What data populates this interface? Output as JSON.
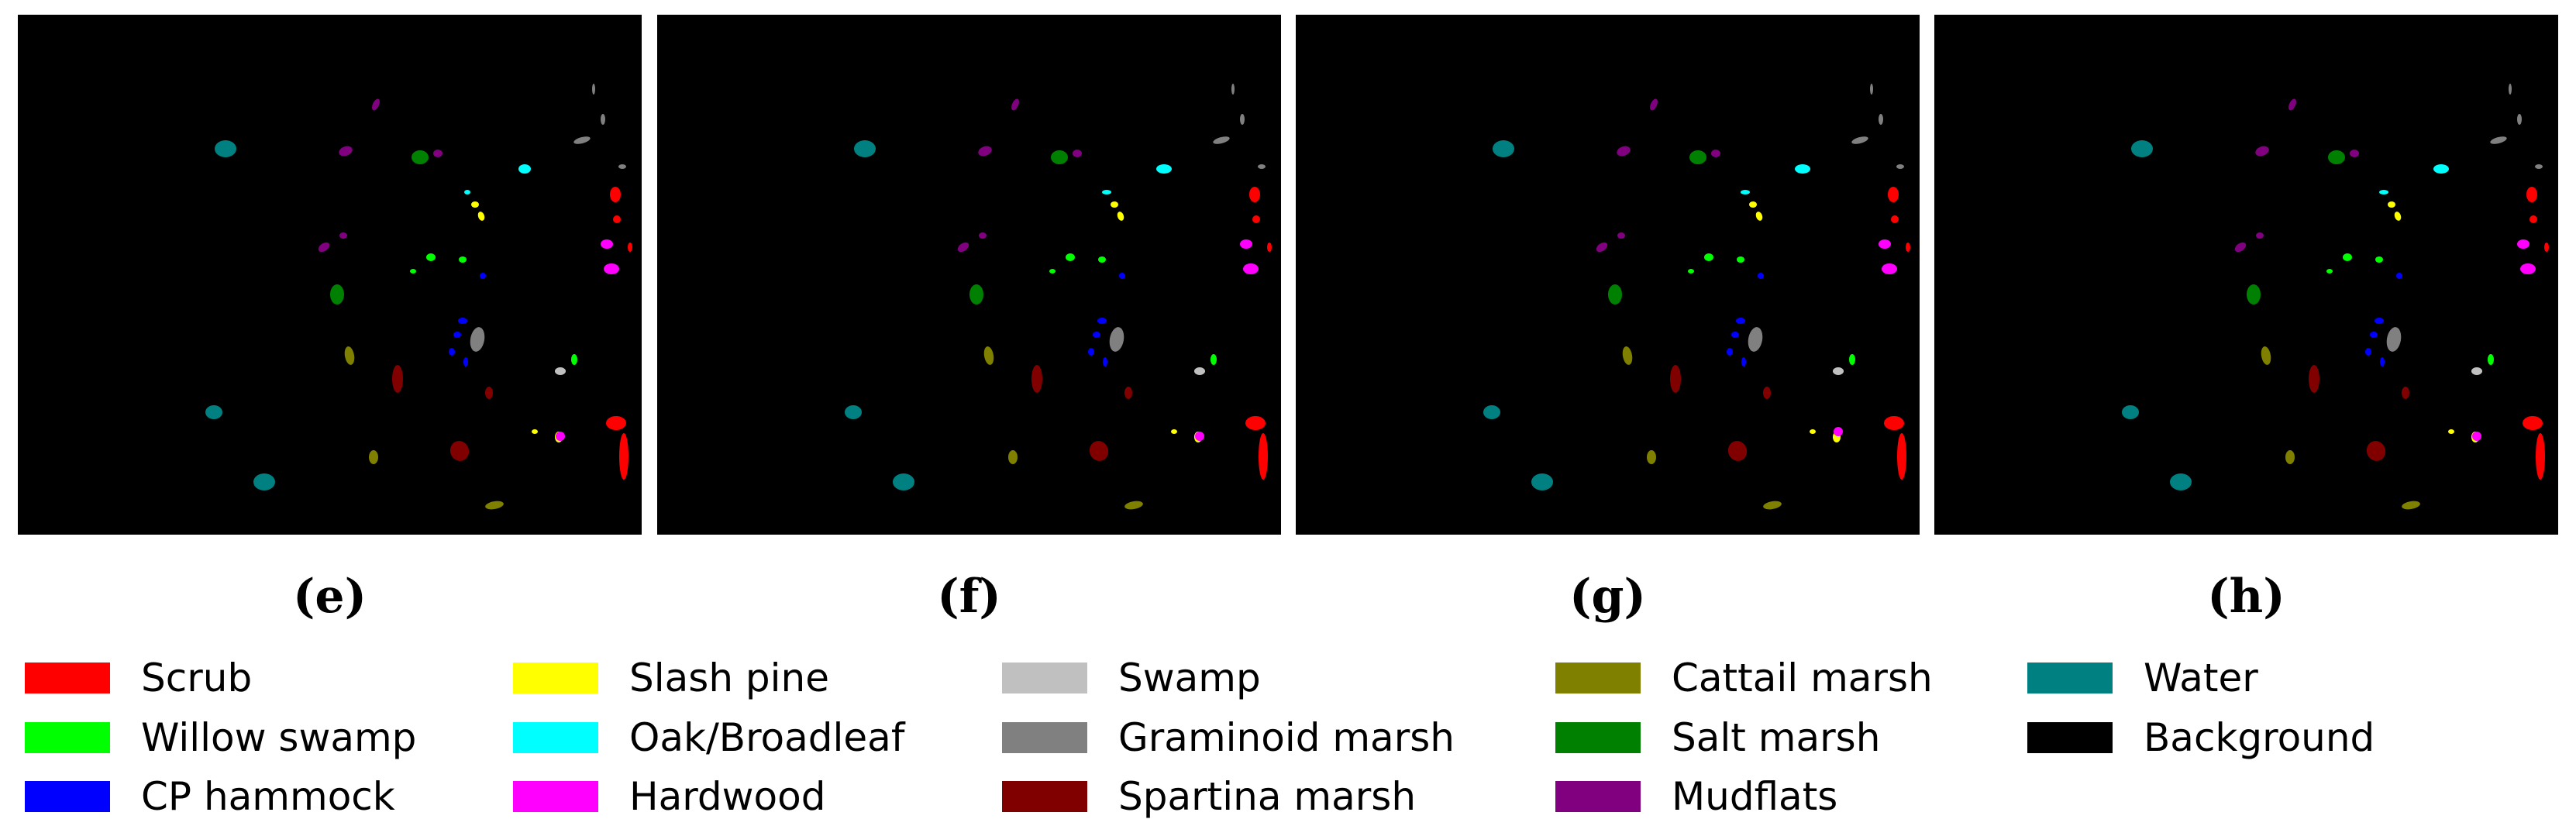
{
  "panels": [
    {
      "id": "e",
      "caption": "(e)"
    },
    {
      "id": "f",
      "caption": "(f)"
    },
    {
      "id": "g",
      "caption": "(g)"
    },
    {
      "id": "h",
      "caption": "(h)"
    }
  ],
  "legend": [
    {
      "label": "Scrub",
      "color": "#ff0000"
    },
    {
      "label": "Willow swamp",
      "color": "#00ff00"
    },
    {
      "label": "CP hammock",
      "color": "#0000ff"
    },
    {
      "label": "Slash pine",
      "color": "#ffff00"
    },
    {
      "label": "Oak/Broadleaf",
      "color": "#00ffff"
    },
    {
      "label": "Hardwood",
      "color": "#ff00ff"
    },
    {
      "label": "Swamp",
      "color": "#c0c0c0"
    },
    {
      "label": "Graminoid marsh",
      "color": "#808080"
    },
    {
      "label": "Spartina marsh",
      "color": "#800000"
    },
    {
      "label": "Cattail marsh",
      "color": "#808000"
    },
    {
      "label": "Salt marsh",
      "color": "#008000"
    },
    {
      "label": "Mudflats",
      "color": "#800080"
    },
    {
      "label": "Water",
      "color": "#008080"
    },
    {
      "label": "Background",
      "color": "#000000"
    }
  ]
}
